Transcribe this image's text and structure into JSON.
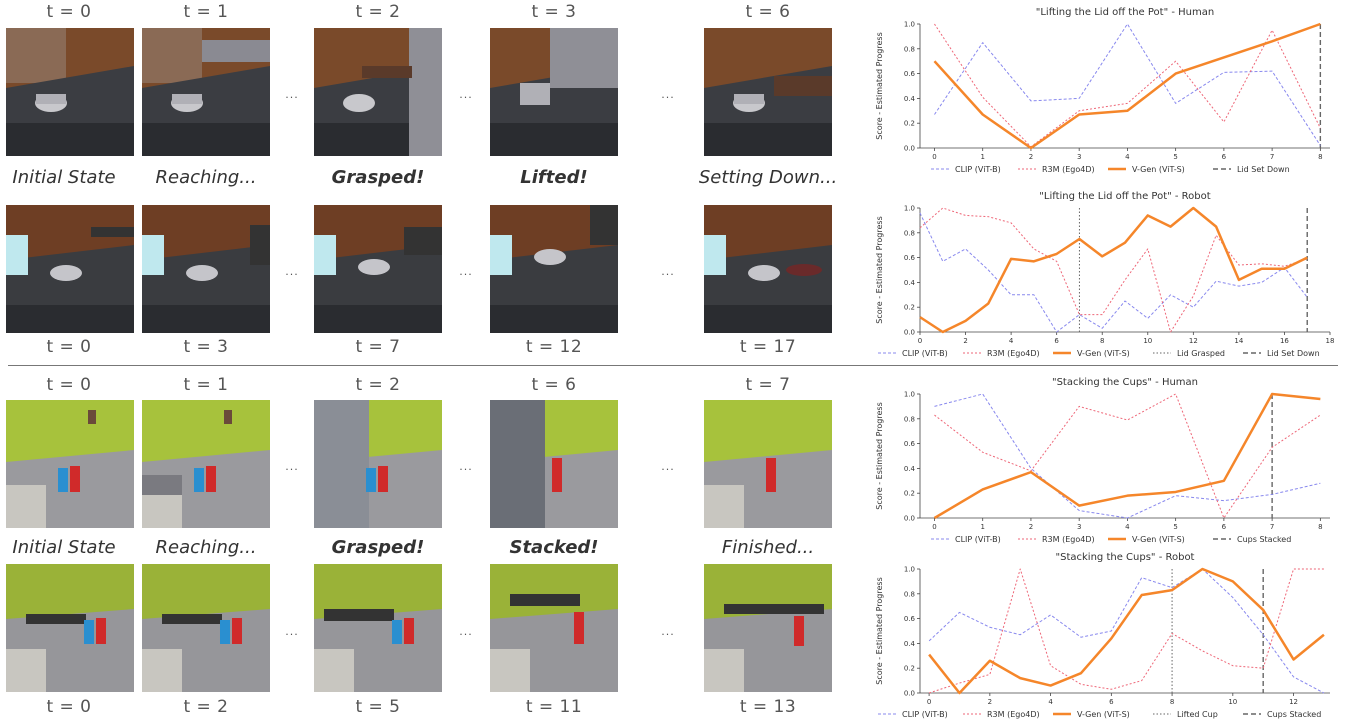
{
  "sections": [
    {
      "human_times": [
        "t = 0",
        "t = 1",
        "t = 2",
        "t = 3",
        "t = 6"
      ],
      "captions": [
        "Initial State",
        "Reaching...",
        "Grasped!",
        "Lifted!",
        "Setting Down..."
      ],
      "robot_times": [
        "t = 0",
        "t = 3",
        "t = 7",
        "t = 12",
        "t = 17"
      ]
    },
    {
      "human_times": [
        "t = 0",
        "t = 1",
        "t = 2",
        "t = 6",
        "t = 7"
      ],
      "captions": [
        "Initial State",
        "Reaching...",
        "Grasped!",
        "Stacked!",
        "Finished..."
      ],
      "robot_times": [
        "t = 0",
        "t = 2",
        "t = 5",
        "t = 11",
        "t = 13"
      ]
    }
  ],
  "ellipsis": "...",
  "colors": {
    "clip": "#8888ee",
    "r3m": "#ee6677",
    "vgen": "#f5862a",
    "marker": "#666666"
  },
  "chart_data": [
    {
      "type": "line",
      "title": "\"Lifting the Lid off the Pot\" - Human",
      "ylabel": "Score - Estimated Progress",
      "xlabel": "",
      "xlim": [
        -0.3,
        8.2
      ],
      "ylim": [
        0,
        1
      ],
      "xticks": [
        0,
        1,
        2,
        3,
        4,
        5,
        6,
        7,
        8
      ],
      "yticks": [
        0.0,
        0.2,
        0.4,
        0.6,
        0.8,
        1.0
      ],
      "x": [
        0,
        1,
        2,
        3,
        4,
        5,
        6,
        7,
        8
      ],
      "series": [
        {
          "name": "CLIP (ViT-B)",
          "values": [
            0.27,
            0.85,
            0.38,
            0.4,
            1.0,
            0.36,
            0.61,
            0.62,
            0.02
          ]
        },
        {
          "name": "R3M (Ego4D)",
          "values": [
            1.0,
            0.41,
            0.01,
            0.3,
            0.36,
            0.7,
            0.21,
            0.95,
            0.16
          ]
        },
        {
          "name": "V-Gen (ViT-S)",
          "values": [
            0.7,
            0.27,
            0.0,
            0.27,
            0.3,
            0.6,
            0.73,
            0.86,
            1.0
          ]
        }
      ],
      "markers": [
        {
          "name": "Lid Set Down",
          "x": 8,
          "style": "dashed"
        }
      ],
      "legend": "bottom"
    },
    {
      "type": "line",
      "title": "\"Lifting the Lid off the Pot\" - Robot",
      "ylabel": "Score - Estimated Progress",
      "xlabel": "",
      "xlim": [
        0,
        18
      ],
      "ylim": [
        0,
        1
      ],
      "xticks": [
        0,
        2,
        4,
        6,
        8,
        10,
        12,
        14,
        16,
        18
      ],
      "yticks": [
        0.0,
        0.2,
        0.4,
        0.6,
        0.8,
        1.0
      ],
      "x": [
        0,
        1,
        2,
        3,
        4,
        5,
        6,
        7,
        8,
        9,
        10,
        11,
        12,
        13,
        14,
        15,
        16,
        17
      ],
      "series": [
        {
          "name": "CLIP (ViT-B)",
          "values": [
            0.96,
            0.57,
            0.67,
            0.5,
            0.3,
            0.3,
            0.0,
            0.14,
            0.03,
            0.25,
            0.11,
            0.3,
            0.2,
            0.41,
            0.37,
            0.4,
            0.52,
            0.28
          ]
        },
        {
          "name": "R3M (Ego4D)",
          "values": [
            0.84,
            1.0,
            0.94,
            0.93,
            0.88,
            0.67,
            0.57,
            0.14,
            0.14,
            0.42,
            0.67,
            0.0,
            0.29,
            0.78,
            0.54,
            0.55,
            0.53,
            0.59
          ]
        },
        {
          "name": "V-Gen (ViT-S)",
          "values": [
            0.12,
            0.0,
            0.09,
            0.23,
            0.59,
            0.57,
            0.63,
            0.75,
            0.61,
            0.72,
            0.94,
            0.85,
            1.0,
            0.85,
            0.42,
            0.51,
            0.51,
            0.6
          ]
        }
      ],
      "markers": [
        {
          "name": "Lid Grasped",
          "x": 7,
          "style": "dotted"
        },
        {
          "name": "Lid Set Down",
          "x": 17,
          "style": "dashed"
        }
      ],
      "legend": "bottom"
    },
    {
      "type": "line",
      "title": "\"Stacking the Cups\" - Human",
      "ylabel": "Score - Estimated Progress",
      "xlabel": "",
      "xlim": [
        -0.3,
        8.2
      ],
      "ylim": [
        0,
        1
      ],
      "xticks": [
        0,
        1,
        2,
        3,
        4,
        5,
        6,
        7,
        8
      ],
      "yticks": [
        0.0,
        0.2,
        0.4,
        0.6,
        0.8,
        1.0
      ],
      "x": [
        0,
        1,
        2,
        3,
        4,
        5,
        6,
        7,
        8
      ],
      "series": [
        {
          "name": "CLIP (ViT-B)",
          "values": [
            0.9,
            1.0,
            0.4,
            0.06,
            0.0,
            0.18,
            0.14,
            0.19,
            0.28
          ]
        },
        {
          "name": "R3M (Ego4D)",
          "values": [
            0.83,
            0.53,
            0.38,
            0.9,
            0.79,
            1.0,
            0.0,
            0.57,
            0.83
          ]
        },
        {
          "name": "V-Gen (ViT-S)",
          "values": [
            0.0,
            0.23,
            0.37,
            0.1,
            0.18,
            0.21,
            0.3,
            1.0,
            0.96
          ]
        }
      ],
      "markers": [
        {
          "name": "Cups Stacked",
          "x": 7,
          "style": "dashed"
        }
      ],
      "legend": "bottom"
    },
    {
      "type": "line",
      "title": "\"Stacking the Cups\" - Robot",
      "ylabel": "Score - Estimated Progress",
      "xlabel": "",
      "xlim": [
        -0.3,
        13.2
      ],
      "ylim": [
        0,
        1
      ],
      "xticks": [
        0,
        2,
        4,
        6,
        8,
        10,
        12
      ],
      "yticks": [
        0.0,
        0.2,
        0.4,
        0.6,
        0.8,
        1.0
      ],
      "x": [
        0,
        1,
        2,
        3,
        4,
        5,
        6,
        7,
        8,
        9,
        10,
        11,
        12,
        13
      ],
      "series": [
        {
          "name": "CLIP (ViT-B)",
          "values": [
            0.42,
            0.65,
            0.53,
            0.47,
            0.63,
            0.45,
            0.5,
            0.93,
            0.85,
            1.0,
            0.77,
            0.47,
            0.13,
            0.0
          ]
        },
        {
          "name": "R3M (Ego4D)",
          "values": [
            0.0,
            0.08,
            0.15,
            1.0,
            0.22,
            0.07,
            0.03,
            0.1,
            0.48,
            0.34,
            0.22,
            0.2,
            1.0,
            1.0
          ]
        },
        {
          "name": "V-Gen (ViT-S)",
          "values": [
            0.31,
            0.0,
            0.26,
            0.12,
            0.06,
            0.16,
            0.44,
            0.79,
            0.83,
            1.0,
            0.9,
            0.67,
            0.27,
            0.47
          ]
        }
      ],
      "markers": [
        {
          "name": "Lifted Cup",
          "x": 8,
          "style": "dotted"
        },
        {
          "name": "Cups Stacked",
          "x": 11,
          "style": "dashed"
        }
      ],
      "legend": "bottom"
    }
  ]
}
